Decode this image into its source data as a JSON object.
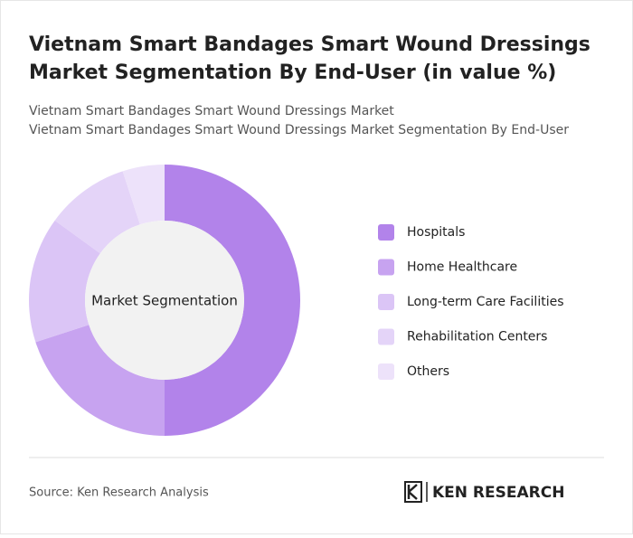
{
  "chart_data": {
    "type": "donut",
    "title": [
      "Vietnam Smart Bandages Smart Wound Dressings",
      "Market Segmentation By End-User (in value %)"
    ],
    "subtitle": [
      "Vietnam Smart Bandages Smart Wound Dressings Market",
      "Vietnam Smart Bandages Smart Wound Dressings Market Segmentation By End-User"
    ],
    "center_label": "Market Segmentation",
    "categories": [
      "Hospitals",
      "Home Healthcare",
      "Long-term Care Facilities",
      "Rehabilitation Centers",
      "Others"
    ],
    "values": [
      50,
      20,
      15,
      10,
      5
    ],
    "colors": [
      "#b283ea",
      "#c7a3f0",
      "#dbc5f6",
      "#e4d4f8",
      "#ede2fa"
    ],
    "legend": "right"
  },
  "source": "Source: Ken Research Analysis",
  "brand": "KEN RESEARCH"
}
